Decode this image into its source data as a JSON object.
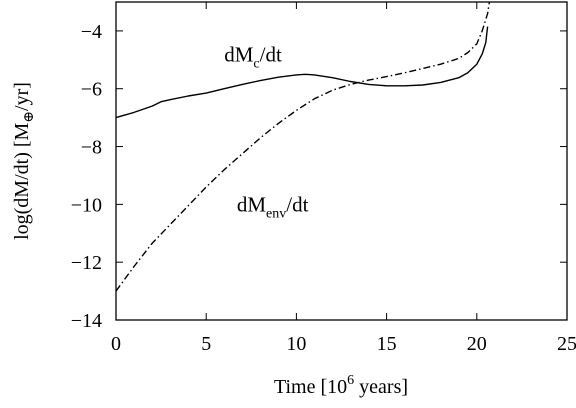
{
  "chart_data": {
    "type": "line",
    "title": "",
    "xlabel": {
      "main": "Time [10",
      "sup": "6",
      "tail": " years]"
    },
    "ylabel": {
      "main": "log(dM/dt) [M",
      "sub": "⊕",
      "tail": "/yr]"
    },
    "xlim": [
      0,
      25
    ],
    "ylim": [
      -14,
      -3
    ],
    "xticks": [
      0,
      5,
      10,
      15,
      20,
      25
    ],
    "xtick_labels": [
      "0",
      "5",
      "10",
      "15",
      "20",
      "25"
    ],
    "yticks": [
      -14,
      -12,
      -10,
      -8,
      -6,
      -4
    ],
    "ytick_labels": [
      "−14",
      "−12",
      "−10",
      "−8",
      "−6",
      "−4"
    ],
    "grid": false,
    "legend": "none",
    "series": [
      {
        "name": "dMc/dt",
        "label_main": "dM",
        "label_sub": "c",
        "label_tail": "/dt",
        "style": "solid",
        "color": "#000000",
        "x": [
          0,
          1,
          2,
          2.5,
          3,
          4,
          5,
          6,
          7,
          8,
          9,
          10,
          10.5,
          11,
          12,
          13,
          14,
          15,
          16,
          17,
          18,
          19,
          19.5,
          20,
          20.3,
          20.5,
          20.6
        ],
        "y": [
          -7.0,
          -6.82,
          -6.6,
          -6.45,
          -6.38,
          -6.25,
          -6.15,
          -6.0,
          -5.85,
          -5.72,
          -5.6,
          -5.52,
          -5.5,
          -5.52,
          -5.62,
          -5.75,
          -5.85,
          -5.9,
          -5.9,
          -5.87,
          -5.78,
          -5.62,
          -5.45,
          -5.15,
          -4.8,
          -4.4,
          -3.85
        ]
      },
      {
        "name": "dMenv/dt",
        "label_main": "dM",
        "label_sub": "env",
        "label_tail": "/dt",
        "style": "dashdot",
        "color": "#000000",
        "x": [
          0,
          1,
          2,
          3,
          4,
          5,
          6,
          7,
          8,
          9,
          10,
          11,
          12,
          13,
          14,
          15,
          16,
          17,
          18,
          19,
          19.5,
          20,
          20.3,
          20.6,
          20.7
        ],
        "y": [
          -13.0,
          -12.15,
          -11.35,
          -10.7,
          -10.05,
          -9.4,
          -8.8,
          -8.25,
          -7.7,
          -7.2,
          -6.75,
          -6.35,
          -6.05,
          -5.85,
          -5.7,
          -5.58,
          -5.45,
          -5.3,
          -5.15,
          -4.95,
          -4.75,
          -4.45,
          -4.0,
          -3.4,
          -3.0
        ]
      }
    ],
    "annotations": [
      {
        "series_index": 0,
        "x": 6.0,
        "y": -5.05
      },
      {
        "series_index": 1,
        "x": 6.7,
        "y": -10.25
      }
    ]
  }
}
